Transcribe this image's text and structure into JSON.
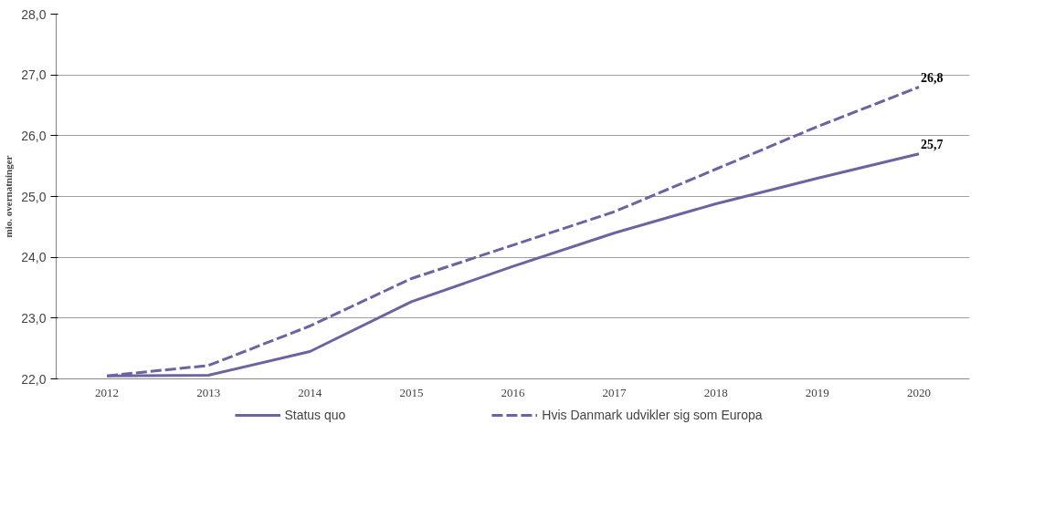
{
  "chart_data": {
    "type": "line",
    "ylabel": "mio. overnatninger",
    "categories": [
      "2012",
      "2013",
      "2014",
      "2015",
      "2016",
      "2017",
      "2018",
      "2019",
      "2020"
    ],
    "series": [
      {
        "name": "Status quo",
        "color": "#6a64a0",
        "line_style": "solid",
        "values": [
          22.05,
          22.06,
          22.45,
          23.27,
          23.85,
          24.4,
          24.88,
          25.3,
          25.7
        ],
        "value_labels": [
          null,
          null,
          null,
          null,
          null,
          null,
          null,
          null,
          "25,7"
        ]
      },
      {
        "name": "Hvis Danmark udvikler sig som Europa",
        "color": "#6a64a0",
        "line_style": "dashed",
        "values": [
          22.05,
          22.22,
          22.87,
          23.65,
          24.2,
          24.75,
          25.45,
          26.15,
          26.8
        ],
        "value_labels": [
          null,
          null,
          null,
          null,
          null,
          null,
          null,
          null,
          "26,8"
        ]
      }
    ],
    "ylim": [
      22,
      28
    ],
    "yticks": [
      {
        "value": 22,
        "label": "22,0"
      },
      {
        "value": 23,
        "label": "23,0"
      },
      {
        "value": 24,
        "label": "24,0"
      },
      {
        "value": 25,
        "label": "25,0"
      },
      {
        "value": 26,
        "label": "26,0"
      },
      {
        "value": 27,
        "label": "27,0"
      },
      {
        "value": 28,
        "label": "28,0"
      }
    ],
    "grid": "y",
    "legend": "bottom",
    "marker": "none"
  }
}
